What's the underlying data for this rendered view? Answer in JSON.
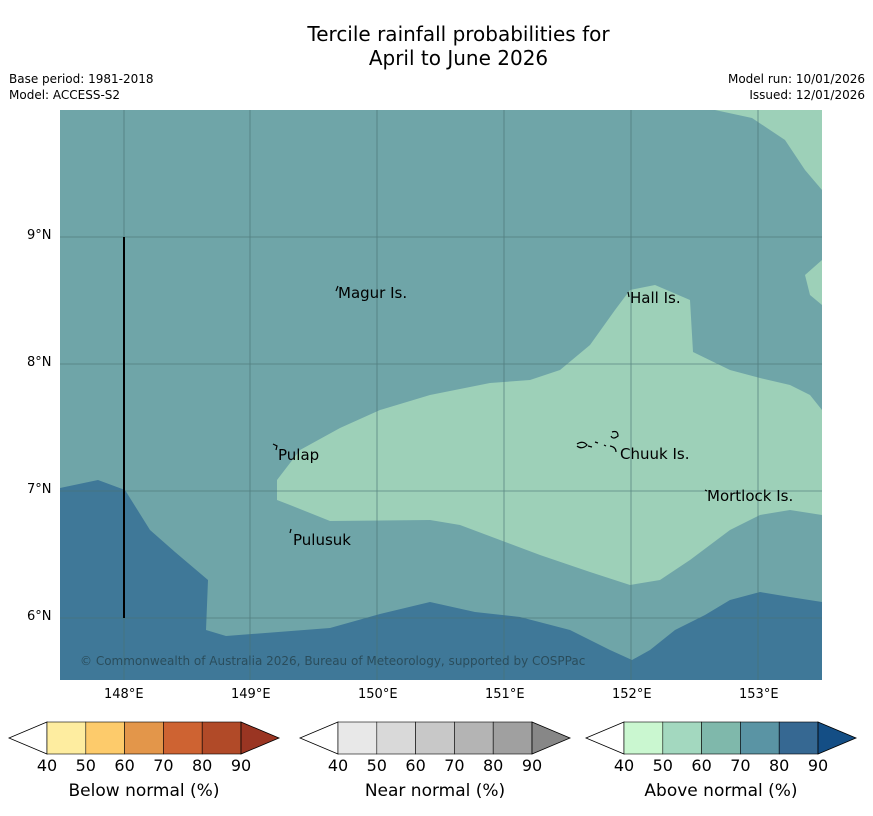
{
  "title_line1": "Tercile rainfall probabilities for",
  "title_line2": "April to June 2026",
  "base_period": "Base period: 1981-2018",
  "model": "Model: ACCESS-S2",
  "model_run": "Model run: 10/01/2026",
  "issued": "Issued: 12/01/2026",
  "copyright": "© Commonwealth of Australia 2026, Bureau of Meteorology, supported by COSPPac",
  "lat_labels": [
    "9°N",
    "8°N",
    "7°N",
    "6°N"
  ],
  "lon_labels": [
    "148°E",
    "149°E",
    "150°E",
    "151°E",
    "152°E",
    "153°E"
  ],
  "places": [
    "Magur Is.",
    "Hall Is.",
    "Pulap",
    "Chuuk Is.",
    "Mortlock Is.",
    "Pulusuk"
  ],
  "colors": {
    "above_50_60": "#9dd0b8",
    "above_60_70": "#6fa5a8",
    "above_70_80": "#3f7898"
  },
  "legends": [
    {
      "title": "Below normal (%)",
      "ticks": [
        "40",
        "50",
        "60",
        "70",
        "80",
        "90"
      ],
      "colors": [
        "#ffffff",
        "#feeda0",
        "#fdcb6b",
        "#e3964a",
        "#ce6332",
        "#b14a28",
        "#9a3522"
      ]
    },
    {
      "title": "Near normal (%)",
      "ticks": [
        "40",
        "50",
        "60",
        "70",
        "80",
        "90"
      ],
      "colors": [
        "#ffffff",
        "#e8e8e8",
        "#d9d9d9",
        "#c8c8c8",
        "#b4b4b4",
        "#a0a0a0",
        "#878787"
      ]
    },
    {
      "title": "Above normal (%)",
      "ticks": [
        "40",
        "50",
        "60",
        "70",
        "80",
        "90"
      ],
      "colors": [
        "#ffffff",
        "#caf7d0",
        "#a3d8bf",
        "#7fb8ab",
        "#5a94a4",
        "#366892",
        "#144e85"
      ]
    }
  ]
}
